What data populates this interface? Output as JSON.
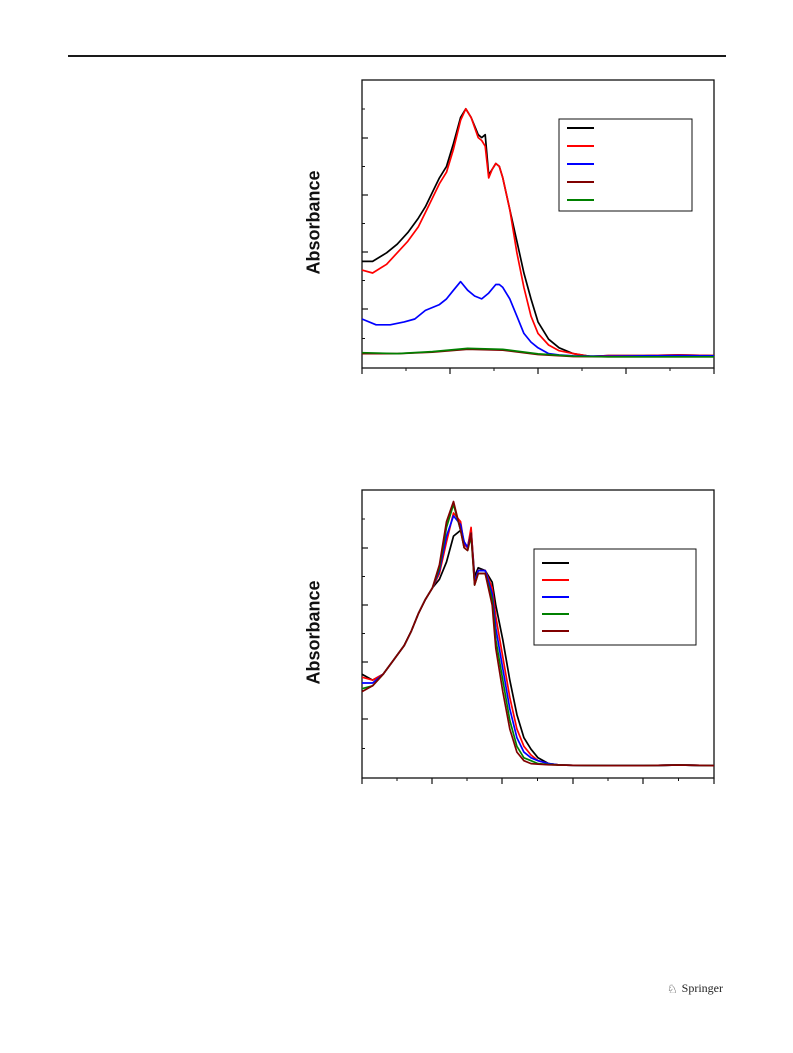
{
  "page": {
    "publisher_name": "Springer"
  },
  "colors": {
    "black": "#000000",
    "red": "#ff0000",
    "blue": "#0000ff",
    "brown": "#800000",
    "green": "#008000"
  },
  "chart_data": [
    {
      "type": "line",
      "ylabel": "Absorbance",
      "xlabel": "",
      "xlim": [
        0,
        100
      ],
      "ylim": [
        0,
        100
      ],
      "legend_position": "top-right",
      "legend_entries": 5,
      "series": [
        {
          "color": "#000000",
          "x": [
            0,
            3,
            7,
            10,
            13,
            16,
            18,
            20,
            22,
            24,
            26,
            28,
            29.5,
            31,
            33,
            34,
            35,
            36,
            37,
            38,
            39,
            40,
            42,
            44,
            46,
            48,
            50,
            53,
            56,
            60,
            65,
            70,
            80,
            90,
            100
          ],
          "y": [
            37,
            37,
            40,
            43,
            47,
            52,
            56,
            61,
            66,
            70,
            78,
            87,
            90,
            87,
            81,
            80,
            81,
            67,
            69,
            71,
            70,
            66,
            55,
            44,
            33,
            24,
            16,
            10,
            7,
            5,
            4,
            4.3,
            4.3,
            4.5,
            4.3
          ]
        },
        {
          "color": "#ff0000",
          "x": [
            0,
            3,
            7,
            10,
            13,
            16,
            18,
            20,
            22,
            24,
            26,
            28,
            29.5,
            31,
            33,
            34,
            35,
            36,
            37,
            38,
            39,
            40,
            42,
            44,
            46,
            48,
            50,
            53,
            56,
            60,
            65,
            70,
            80,
            90,
            100
          ],
          "y": [
            34,
            33,
            36,
            40,
            44,
            49,
            54,
            59,
            64,
            68,
            76,
            86,
            90,
            87,
            80,
            79,
            77,
            66,
            69,
            71,
            70,
            66,
            55,
            40,
            28,
            18,
            12,
            8,
            6,
            5,
            4,
            4.3,
            4.3,
            4.5,
            4.3
          ]
        },
        {
          "color": "#0000ff",
          "x": [
            0,
            4,
            8,
            12,
            15,
            18,
            20,
            22,
            24,
            26,
            28,
            30,
            32,
            34,
            36,
            38,
            39,
            40,
            42,
            44,
            46,
            48,
            50,
            53,
            56,
            60,
            70,
            80,
            90,
            100
          ],
          "y": [
            17,
            15,
            15,
            16,
            17,
            20,
            21,
            22,
            24,
            27,
            30,
            27,
            25,
            24,
            26,
            29,
            29,
            28,
            24,
            18,
            12,
            9,
            7,
            5,
            4.5,
            4.2,
            4.1,
            4.2,
            4.3,
            4.2
          ]
        },
        {
          "color": "#800000",
          "x": [
            0,
            10,
            20,
            30,
            40,
            50,
            60,
            70,
            80,
            90,
            100
          ],
          "y": [
            5,
            5,
            5.5,
            6.5,
            6.2,
            4.7,
            4,
            3.9,
            3.9,
            3.9,
            3.9
          ]
        },
        {
          "color": "#008000",
          "x": [
            0,
            10,
            20,
            30,
            40,
            50,
            60,
            70,
            80,
            90,
            100
          ],
          "y": [
            5.3,
            5,
            5.7,
            6.8,
            6.5,
            4.9,
            4.1,
            3.9,
            3.9,
            3.9,
            3.9
          ]
        }
      ]
    },
    {
      "type": "line",
      "ylabel": "Absorbance",
      "xlabel": "",
      "xlim": [
        0,
        100
      ],
      "ylim": [
        0,
        100
      ],
      "legend_position": "top-right",
      "legend_entries": 5,
      "series": [
        {
          "color": "#000000",
          "x": [
            0,
            3,
            6,
            9,
            12,
            14,
            16,
            18,
            20,
            22,
            24,
            26,
            28,
            29,
            30,
            31,
            32,
            33,
            35,
            37,
            38,
            40,
            42,
            44,
            46,
            48,
            50,
            53,
            56,
            60,
            70,
            80,
            90,
            100
          ],
          "y": [
            36,
            34,
            36,
            41,
            46,
            51,
            57,
            62,
            66,
            69,
            75,
            84,
            86,
            82,
            80,
            86,
            70,
            73,
            72,
            68,
            60,
            48,
            34,
            22,
            14,
            10,
            7,
            5,
            4.5,
            4.4,
            4.3,
            4.3,
            4.5,
            4.3
          ]
        },
        {
          "color": "#ff0000",
          "x": [
            0,
            3,
            6,
            9,
            12,
            14,
            16,
            18,
            20,
            22,
            24,
            26,
            28,
            29,
            30,
            31,
            32,
            33,
            35,
            37,
            38,
            40,
            42,
            44,
            46,
            48,
            50,
            53,
            56,
            60,
            70,
            80,
            90,
            100
          ],
          "y": [
            35,
            34,
            36,
            41,
            46,
            51,
            57,
            62,
            66,
            71,
            82,
            92,
            89,
            81,
            80,
            87,
            68,
            72,
            72,
            66,
            56,
            42,
            28,
            17,
            11,
            8,
            6,
            5,
            4.5,
            4.4,
            4.3,
            4.3,
            4.5,
            4.3
          ]
        },
        {
          "color": "#0000ff",
          "x": [
            0,
            3,
            6,
            9,
            12,
            14,
            16,
            18,
            20,
            22,
            24,
            26,
            28,
            29,
            30,
            31,
            32,
            33,
            35,
            37,
            38,
            40,
            42,
            44,
            46,
            48,
            50,
            53,
            56,
            60,
            70,
            80,
            90,
            100
          ],
          "y": [
            33,
            33,
            36,
            41,
            46,
            51,
            57,
            62,
            66,
            72,
            84,
            91,
            88,
            82,
            80,
            85,
            68,
            72,
            72,
            64,
            52,
            38,
            24,
            14,
            9,
            7,
            6,
            5,
            4.5,
            4.4,
            4.3,
            4.3,
            4.5,
            4.3
          ]
        },
        {
          "color": "#008000",
          "x": [
            0,
            3,
            6,
            9,
            12,
            14,
            16,
            18,
            20,
            22,
            24,
            26,
            28,
            29,
            30,
            31,
            32,
            33,
            35,
            37,
            38,
            40,
            42,
            44,
            46,
            48,
            50,
            53,
            56,
            60,
            70,
            80,
            90,
            100
          ],
          "y": [
            31,
            32,
            36,
            41,
            46,
            51,
            57,
            62,
            66,
            73,
            87,
            95,
            86,
            80,
            79,
            84,
            67,
            71,
            71,
            62,
            48,
            34,
            20,
            11,
            7,
            6,
            5,
            4.7,
            4.5,
            4.4,
            4.3,
            4.3,
            4.5,
            4.3
          ]
        },
        {
          "color": "#800000",
          "x": [
            0,
            3,
            6,
            9,
            12,
            14,
            16,
            18,
            20,
            22,
            24,
            26,
            28,
            29,
            30,
            31,
            32,
            33,
            35,
            37,
            38,
            40,
            42,
            44,
            46,
            48,
            50,
            53,
            56,
            60,
            70,
            80,
            90,
            100
          ],
          "y": [
            30,
            32,
            36,
            41,
            46,
            51,
            57,
            62,
            66,
            74,
            89,
            96,
            86,
            80,
            79,
            85,
            67,
            71,
            71,
            60,
            45,
            30,
            17,
            9,
            6,
            5,
            4.8,
            4.6,
            4.5,
            4.4,
            4.3,
            4.3,
            4.5,
            4.3
          ]
        }
      ]
    }
  ]
}
